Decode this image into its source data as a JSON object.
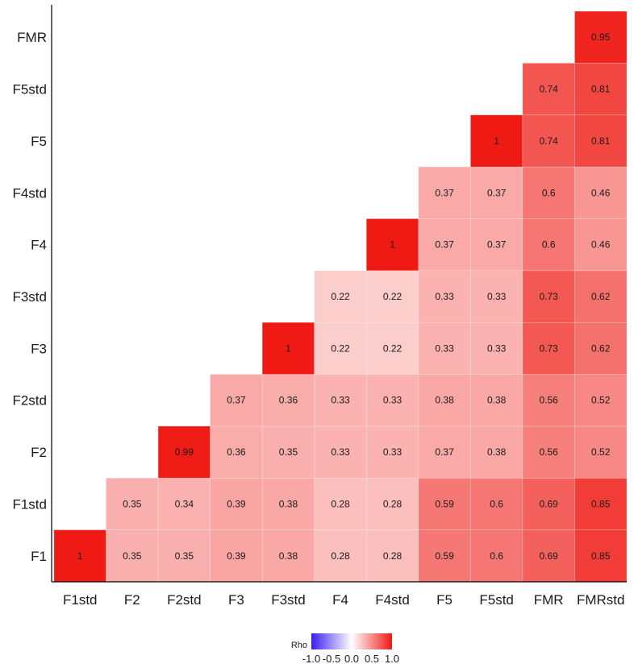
{
  "chart_data": {
    "type": "heatmap",
    "title": "",
    "xlabel": "",
    "ylabel": "",
    "x_categories": [
      "F1std",
      "F2",
      "F2std",
      "F3",
      "F3std",
      "F4",
      "F4std",
      "F5",
      "F5std",
      "FMR",
      "FMRstd"
    ],
    "y_categories": [
      "F1",
      "F1std",
      "F2",
      "F2std",
      "F3",
      "F3std",
      "F4",
      "F4std",
      "F5",
      "F5std",
      "FMR"
    ],
    "values": [
      [
        1,
        0.35,
        0.35,
        0.39,
        0.38,
        0.28,
        0.28,
        0.59,
        0.6,
        0.69,
        0.85
      ],
      [
        null,
        0.35,
        0.34,
        0.39,
        0.38,
        0.28,
        0.28,
        0.59,
        0.6,
        0.69,
        0.85
      ],
      [
        null,
        null,
        0.99,
        0.36,
        0.35,
        0.33,
        0.33,
        0.37,
        0.38,
        0.56,
        0.52
      ],
      [
        null,
        null,
        null,
        0.37,
        0.36,
        0.33,
        0.33,
        0.38,
        0.38,
        0.56,
        0.52
      ],
      [
        null,
        null,
        null,
        null,
        1,
        0.22,
        0.22,
        0.33,
        0.33,
        0.73,
        0.62
      ],
      [
        null,
        null,
        null,
        null,
        null,
        0.22,
        0.22,
        0.33,
        0.33,
        0.73,
        0.62
      ],
      [
        null,
        null,
        null,
        null,
        null,
        null,
        1,
        0.37,
        0.37,
        0.6,
        0.46
      ],
      [
        null,
        null,
        null,
        null,
        null,
        null,
        null,
        0.37,
        0.37,
        0.6,
        0.46
      ],
      [
        null,
        null,
        null,
        null,
        null,
        null,
        null,
        null,
        1,
        0.74,
        0.81
      ],
      [
        null,
        null,
        null,
        null,
        null,
        null,
        null,
        null,
        null,
        0.74,
        0.81
      ],
      [
        null,
        null,
        null,
        null,
        null,
        null,
        null,
        null,
        null,
        null,
        0.95
      ]
    ],
    "legend": {
      "title": "Rho",
      "position": "bottom",
      "range": [
        -1,
        1
      ],
      "ticks": [
        "-1.0",
        "-0.5",
        "0.0",
        "0.5",
        "1.0"
      ],
      "colors": {
        "low": "#3b1ef0",
        "mid": "#ffffff",
        "high": "#ef1a14"
      }
    },
    "grid": false
  }
}
